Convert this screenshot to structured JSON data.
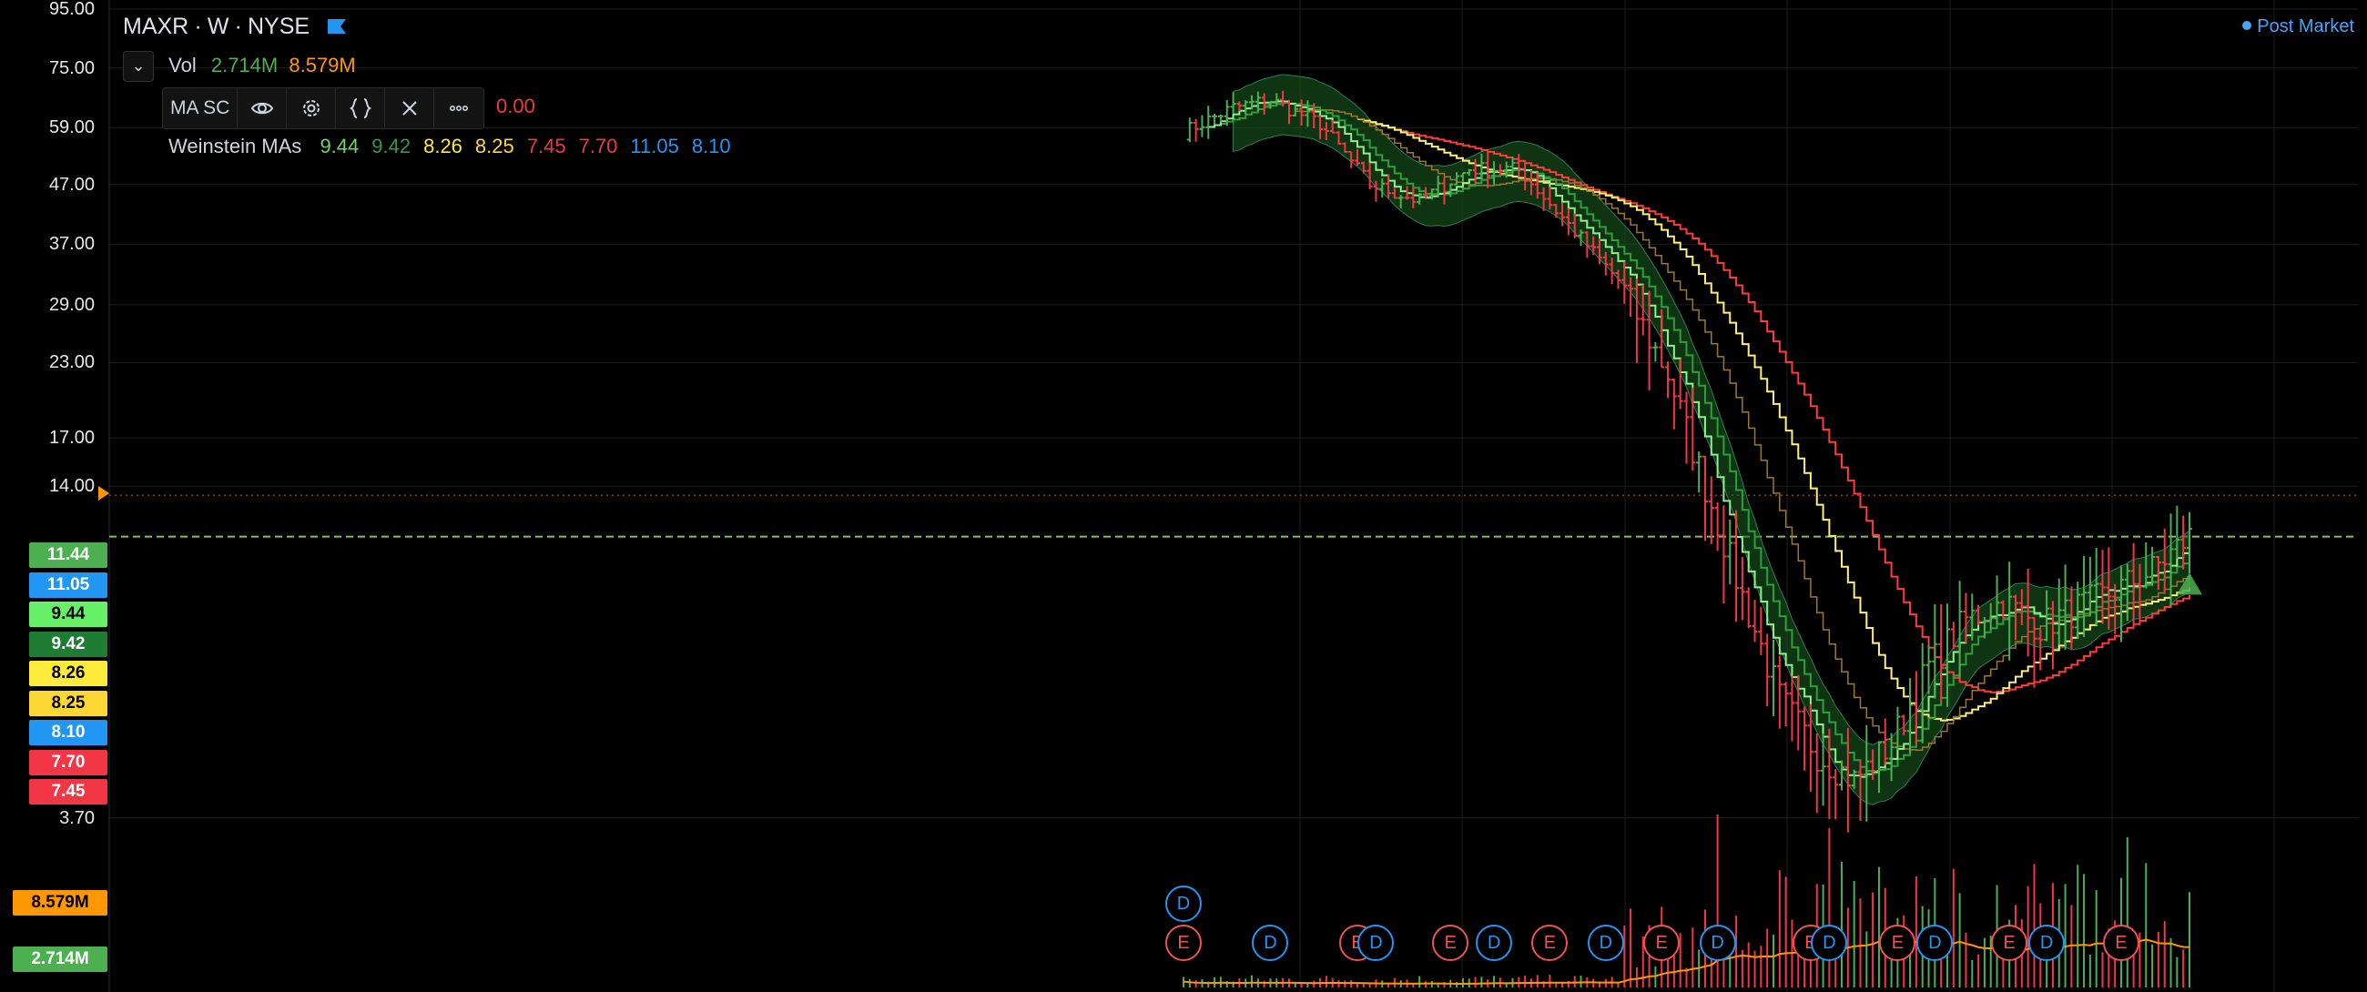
{
  "header": {
    "symbol": "MAXR",
    "interval": "W",
    "exchange": "NYSE",
    "separator": "·",
    "chevron": "⌄"
  },
  "volume_legend": {
    "label": "Vol",
    "value1": "2.714M",
    "value2": "8.579M",
    "value1_color": "#4caf50",
    "value2_color": "#ff9800"
  },
  "indicator_toolbar": {
    "label": "MA SC",
    "trailing_value": "0.00",
    "trailing_color": "#f23645",
    "icons": [
      "eye-icon",
      "gear-icon",
      "braces-icon",
      "close-icon",
      "more-icon"
    ]
  },
  "weinstein": {
    "label": "Weinstein MAs",
    "values": [
      {
        "text": "9.44",
        "color": "#66d966"
      },
      {
        "text": "9.42",
        "color": "#2e9e3e"
      },
      {
        "text": "8.26",
        "color": "#ffeb3b"
      },
      {
        "text": "8.25",
        "color": "#fdd835"
      },
      {
        "text": "7.45",
        "color": "#f23645"
      },
      {
        "text": "7.70",
        "color": "#f23645"
      },
      {
        "text": "11.05",
        "color": "#2196f3"
      },
      {
        "text": "8.10",
        "color": "#2196f3"
      }
    ]
  },
  "post_market": "Post Market",
  "colors": {
    "up": "#4caf50",
    "down": "#f23645",
    "ma_light_green": "#8ef08e",
    "ma_dark_green": "#2e9e3e",
    "ma_yellow": "#fff176",
    "ma_red": "#ff3b3b",
    "band_fill": "#1b5e20",
    "grid": "#1e1e1e",
    "avg_volume": "#ff9800"
  },
  "chart_data": {
    "type": "candlestick",
    "scale": "log",
    "interval": "W",
    "y_ticks": [
      "95.00",
      "75.00",
      "59.00",
      "47.00",
      "37.00",
      "29.00",
      "23.00",
      "17.00",
      "14.00",
      "3.70"
    ],
    "price_badges": [
      {
        "text": "11.44",
        "bg": "#4caf50",
        "fg": "#ffffff"
      },
      {
        "text": "11.05",
        "bg": "#2196f3",
        "fg": "#ffffff"
      },
      {
        "text": "9.44",
        "bg": "#69f069",
        "fg": "#000000"
      },
      {
        "text": "9.42",
        "bg": "#1e7d32",
        "fg": "#ffffff"
      },
      {
        "text": "8.26",
        "bg": "#ffeb3b",
        "fg": "#000000"
      },
      {
        "text": "8.25",
        "bg": "#fdd835",
        "fg": "#000000"
      },
      {
        "text": "8.10",
        "bg": "#2196f3",
        "fg": "#ffffff"
      },
      {
        "text": "7.70",
        "bg": "#f23645",
        "fg": "#ffffff"
      },
      {
        "text": "7.45",
        "bg": "#f23645",
        "fg": "#ffffff"
      }
    ],
    "volume_badges": [
      {
        "text": "8.579M",
        "bg": "#ff9800",
        "fg": "#000000"
      },
      {
        "text": "2.714M",
        "bg": "#4caf50",
        "fg": "#ffffff"
      }
    ],
    "reference_lines": [
      {
        "price": 11.44,
        "color": "#8bc34a",
        "style": "dashed"
      },
      {
        "price": 13.5,
        "color": "#8a3b2a",
        "style": "dotted"
      }
    ],
    "key_prices": [
      {
        "week": 0,
        "price": 58
      },
      {
        "week": 8,
        "price": 64
      },
      {
        "week": 14,
        "price": 66
      },
      {
        "week": 22,
        "price": 60
      },
      {
        "week": 30,
        "price": 47
      },
      {
        "week": 38,
        "price": 44
      },
      {
        "week": 46,
        "price": 50
      },
      {
        "week": 54,
        "price": 50
      },
      {
        "week": 62,
        "price": 40
      },
      {
        "week": 70,
        "price": 32
      },
      {
        "week": 78,
        "price": 22
      },
      {
        "week": 84,
        "price": 14
      },
      {
        "week": 90,
        "price": 9
      },
      {
        "week": 96,
        "price": 6
      },
      {
        "week": 102,
        "price": 4.8
      },
      {
        "week": 108,
        "price": 4.3
      },
      {
        "week": 114,
        "price": 5
      },
      {
        "week": 120,
        "price": 6.8
      },
      {
        "week": 126,
        "price": 8.2
      },
      {
        "week": 132,
        "price": 8.8
      },
      {
        "week": 138,
        "price": 8.0
      },
      {
        "week": 144,
        "price": 8.6
      },
      {
        "week": 150,
        "price": 9.2
      },
      {
        "week": 156,
        "price": 10.0
      },
      {
        "week": 162,
        "price": 11.44
      }
    ],
    "total_weeks": 162,
    "event_markers": [
      {
        "type": "D",
        "row": 1,
        "week": 0
      },
      {
        "type": "E",
        "row": 2,
        "week": 0
      },
      {
        "type": "D",
        "row": 2,
        "week": 14
      },
      {
        "type": "E",
        "row": 2,
        "week": 28
      },
      {
        "type": "D",
        "row": 2,
        "week": 31
      },
      {
        "type": "E",
        "row": 2,
        "week": 43
      },
      {
        "type": "D",
        "row": 2,
        "week": 50
      },
      {
        "type": "E",
        "row": 2,
        "week": 59
      },
      {
        "type": "D",
        "row": 2,
        "week": 68
      },
      {
        "type": "E",
        "row": 2,
        "week": 77
      },
      {
        "type": "D",
        "row": 2,
        "week": 86
      },
      {
        "type": "E",
        "row": 2,
        "week": 101
      },
      {
        "type": "D",
        "row": 2,
        "week": 104
      },
      {
        "type": "E",
        "row": 2,
        "week": 115
      },
      {
        "type": "D",
        "row": 2,
        "week": 121
      },
      {
        "type": "E",
        "row": 2,
        "week": 133
      },
      {
        "type": "D",
        "row": 2,
        "week": 139
      },
      {
        "type": "E",
        "row": 2,
        "week": 151
      }
    ]
  }
}
